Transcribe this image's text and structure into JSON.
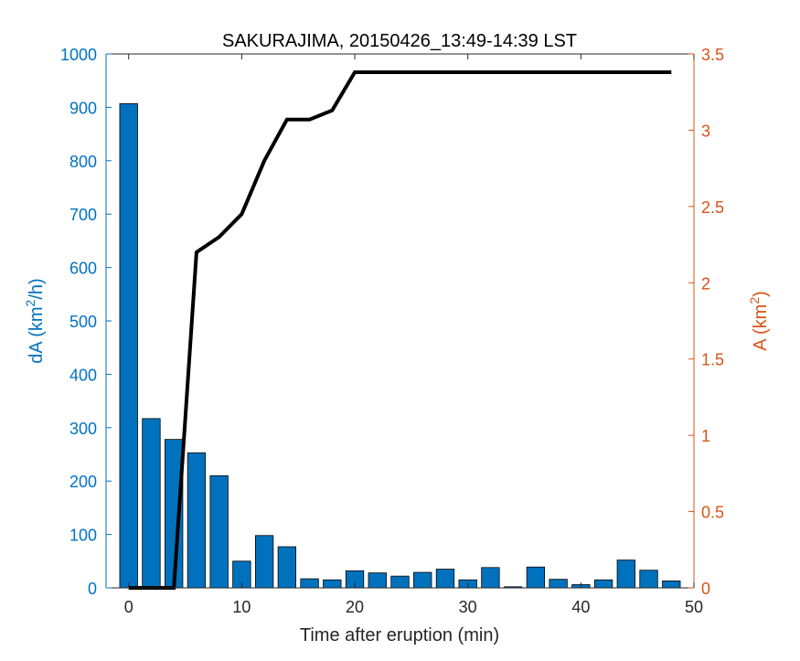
{
  "chart_data": {
    "type": "bar",
    "title": "SAKURAJIMA, 20150426_13:49-14:39 LST",
    "xlabel": "Time after eruption (min)",
    "ylabel_left": {
      "base": "dA (km",
      "sup": "2",
      "tail": "/h)"
    },
    "ylabel_right": {
      "base": "A (km",
      "sup": "2",
      "tail": ")"
    },
    "xlim": [
      -2,
      50
    ],
    "xticks": [
      0,
      10,
      20,
      30,
      40,
      50
    ],
    "ylim_left": [
      0,
      1000
    ],
    "yticks_left": [
      0,
      100,
      200,
      300,
      400,
      500,
      600,
      700,
      800,
      900,
      1000
    ],
    "ylim_right": [
      0,
      3.5
    ],
    "yticks_right": [
      0,
      0.5,
      1,
      1.5,
      2,
      2.5,
      3,
      3.5
    ],
    "colors": {
      "bars": "#0072BD",
      "left_axis": "#0072BD",
      "right_axis": "#D95319",
      "line": "#000000"
    },
    "bars": {
      "name": "dA",
      "axis": "left",
      "x": [
        0,
        2,
        4,
        6,
        8,
        10,
        12,
        14,
        16,
        18,
        20,
        22,
        24,
        26,
        28,
        30,
        32,
        34,
        36,
        38,
        40,
        42,
        44,
        46,
        48
      ],
      "values": [
        907,
        317,
        278,
        253,
        210,
        50,
        98,
        77,
        17,
        15,
        32,
        28,
        22,
        29,
        35,
        15,
        38,
        2,
        39,
        16,
        6,
        15,
        52,
        33,
        13
      ]
    },
    "line": {
      "name": "A",
      "axis": "right",
      "x": [
        0,
        2,
        4,
        6,
        8,
        10,
        12,
        14,
        16,
        18,
        20,
        22,
        24,
        26,
        28,
        30,
        32,
        34,
        36,
        38,
        40,
        42,
        44,
        46,
        48
      ],
      "values": [
        0,
        0,
        0,
        2.2,
        2.3,
        2.45,
        2.8,
        3.07,
        3.07,
        3.13,
        3.38,
        3.38,
        3.38,
        3.38,
        3.38,
        3.38,
        3.38,
        3.38,
        3.38,
        3.38,
        3.38,
        3.38,
        3.38,
        3.38,
        3.38
      ]
    }
  }
}
